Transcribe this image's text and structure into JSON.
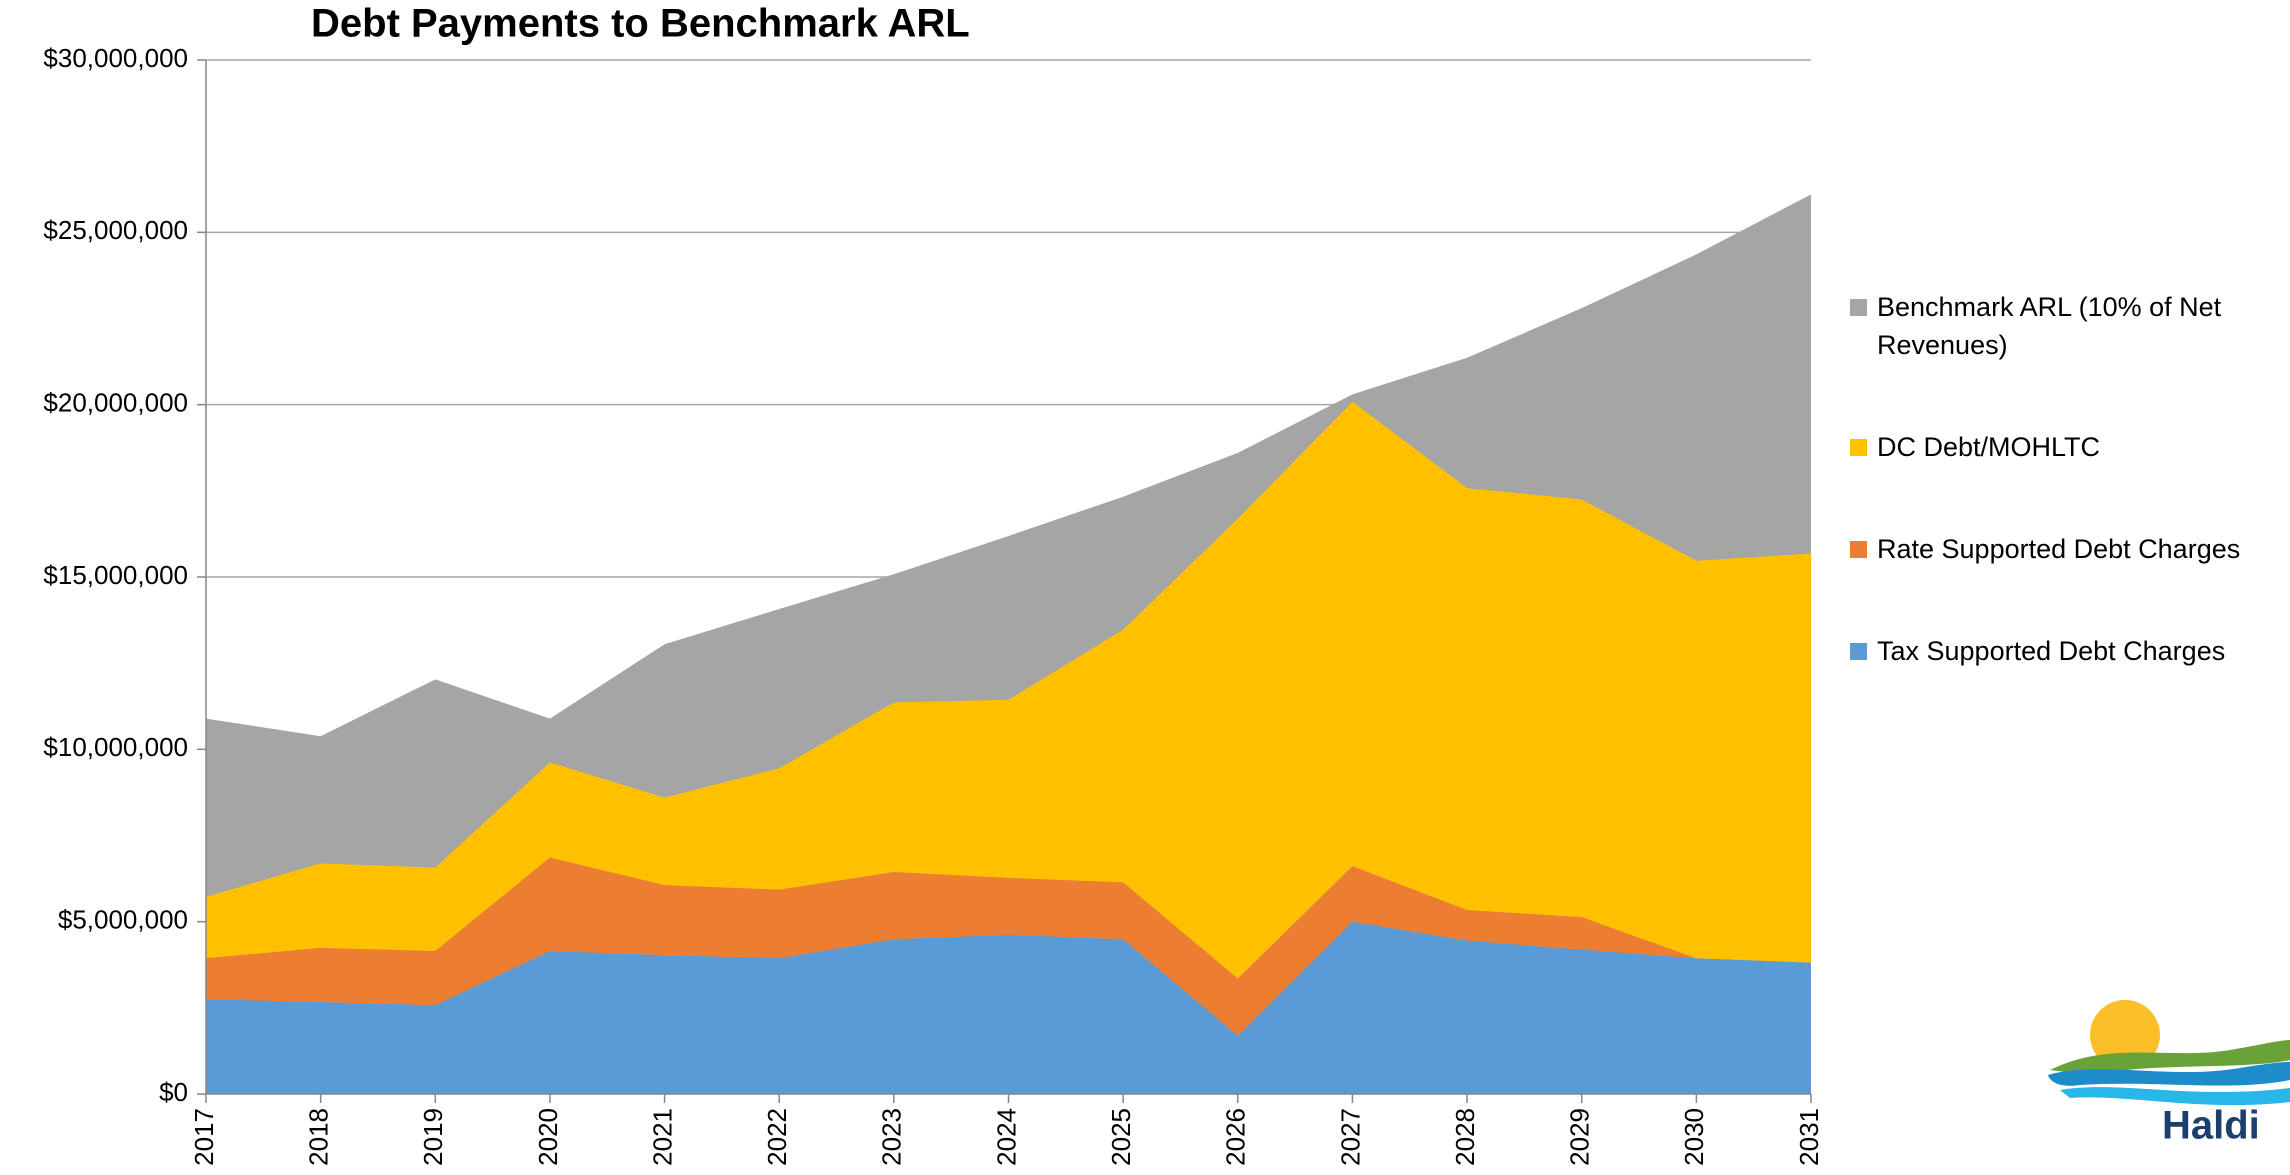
{
  "chart_data": {
    "type": "area",
    "title": "Debt Payments to Benchmark ARL",
    "categories": [
      "2017",
      "2018",
      "2019",
      "2020",
      "2021",
      "2022",
      "2023",
      "2024",
      "2025",
      "2026",
      "2027",
      "2028",
      "2029",
      "2030",
      "2031"
    ],
    "series": [
      {
        "name": "Tax Supported Debt Charges",
        "color": "#5b9bd5",
        "stacked": true,
        "values": [
          2750000,
          2670000,
          2580000,
          4150000,
          4030000,
          3940000,
          4490000,
          4620000,
          4490000,
          1690000,
          5000000,
          4450000,
          4190000,
          3940000,
          3810000
        ]
      },
      {
        "name": "Rate Supported Debt Charges",
        "color": "#ed7d31",
        "stacked": true,
        "values": [
          1190000,
          1570000,
          1570000,
          2710000,
          2030000,
          1990000,
          1950000,
          1650000,
          1650000,
          1660000,
          1610000,
          890000,
          940000,
          0,
          0
        ]
      },
      {
        "name": "DC Debt/MOHLTC",
        "color": "#ffc000",
        "stacked": true,
        "values": [
          1780000,
          2450000,
          2420000,
          2760000,
          2540000,
          3520000,
          4920000,
          5170000,
          7330000,
          13340000,
          13470000,
          12240000,
          12120000,
          11530000,
          11870000
        ]
      },
      {
        "name": "Benchmark ARL (10% of Net Revenues)",
        "color": "#a5a5a5",
        "stacked": false,
        "values": [
          10890000,
          10380000,
          12030000,
          10890000,
          13050000,
          14070000,
          15080000,
          16190000,
          17330000,
          18600000,
          20300000,
          21360000,
          22800000,
          24360000,
          26100000
        ]
      }
    ],
    "ylim": [
      0,
      30000000
    ],
    "yticks": [
      {
        "value": 0,
        "label": "$0"
      },
      {
        "value": 5000000,
        "label": "$5,000,000"
      },
      {
        "value": 10000000,
        "label": "$10,000,000"
      },
      {
        "value": 15000000,
        "label": "$15,000,000"
      },
      {
        "value": 20000000,
        "label": "$20,000,000"
      },
      {
        "value": 25000000,
        "label": "$25,000,000"
      },
      {
        "value": 30000000,
        "label": "$30,000,000"
      }
    ],
    "grid": true,
    "legend": "right"
  },
  "logo_text": "Haldi"
}
